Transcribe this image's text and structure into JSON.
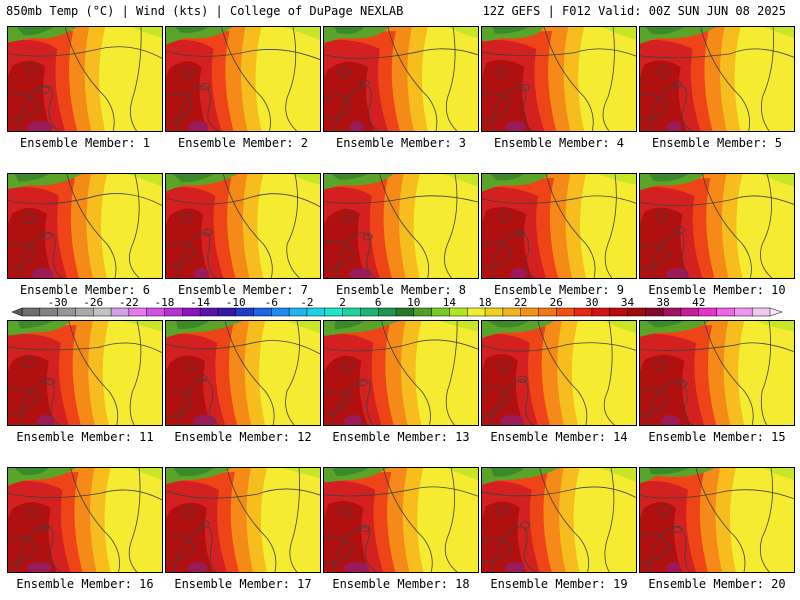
{
  "header": {
    "left": "850mb Temp (°C) | Wind (kts) | College of DuPage NEXLAB",
    "right": "12Z GEFS | F012 Valid: 00Z SUN JUN 08 2025"
  },
  "members": [
    {
      "label": "Ensemble Member: 1"
    },
    {
      "label": "Ensemble Member: 2"
    },
    {
      "label": "Ensemble Member: 3"
    },
    {
      "label": "Ensemble Member: 4"
    },
    {
      "label": "Ensemble Member: 5"
    },
    {
      "label": "Ensemble Member: 6"
    },
    {
      "label": "Ensemble Member: 7"
    },
    {
      "label": "Ensemble Member: 8"
    },
    {
      "label": "Ensemble Member: 9"
    },
    {
      "label": "Ensemble Member: 10"
    },
    {
      "label": "Ensemble Member: 11"
    },
    {
      "label": "Ensemble Member: 12"
    },
    {
      "label": "Ensemble Member: 13"
    },
    {
      "label": "Ensemble Member: 14"
    },
    {
      "label": "Ensemble Member: 15"
    },
    {
      "label": "Ensemble Member: 16"
    },
    {
      "label": "Ensemble Member: 17"
    },
    {
      "label": "Ensemble Member: 18"
    },
    {
      "label": "Ensemble Member: 19"
    },
    {
      "label": "Ensemble Member: 20"
    }
  ],
  "colorbar": {
    "tick_labels": [
      "-30",
      "-26",
      "-22",
      "-18",
      "-14",
      "-10",
      "-6",
      "-2",
      "2",
      "6",
      "10",
      "14",
      "18",
      "22",
      "26",
      "30",
      "34",
      "38",
      "42"
    ],
    "colors": [
      "#6e6e6e",
      "#828282",
      "#969696",
      "#aaaaaa",
      "#c3c3c3",
      "#d2a0e6",
      "#e678f0",
      "#d250e6",
      "#b432d2",
      "#8c14be",
      "#5a14aa",
      "#3219a0",
      "#1e3cc8",
      "#1e64e6",
      "#1e8cf0",
      "#1eb4f0",
      "#1ed2e6",
      "#1ee6c8",
      "#1ed2a0",
      "#1eb478",
      "#1e9650",
      "#287828",
      "#50a028",
      "#78c828",
      "#b4e61e",
      "#f0f032",
      "#f0d21e",
      "#f0b41e",
      "#f09614",
      "#f07814",
      "#f05014",
      "#e62814",
      "#d21414",
      "#be0a0a",
      "#a00a0a",
      "#820a28",
      "#a01464",
      "#c31e96",
      "#e632c8",
      "#f064e6",
      "#f096f0",
      "#f0c8f0"
    ]
  },
  "map_colors": {
    "deep_red": "#b01010",
    "red": "#d42020",
    "orange_red": "#ee4418",
    "orange": "#f58a18",
    "yellow_orange": "#f7bd1e",
    "yellow": "#f5ec32",
    "yellow_green": "#c8e628",
    "green": "#5aa42a",
    "dark_green": "#3a8a2a",
    "magenta": "#9a1a5a",
    "contour": "#404040"
  }
}
